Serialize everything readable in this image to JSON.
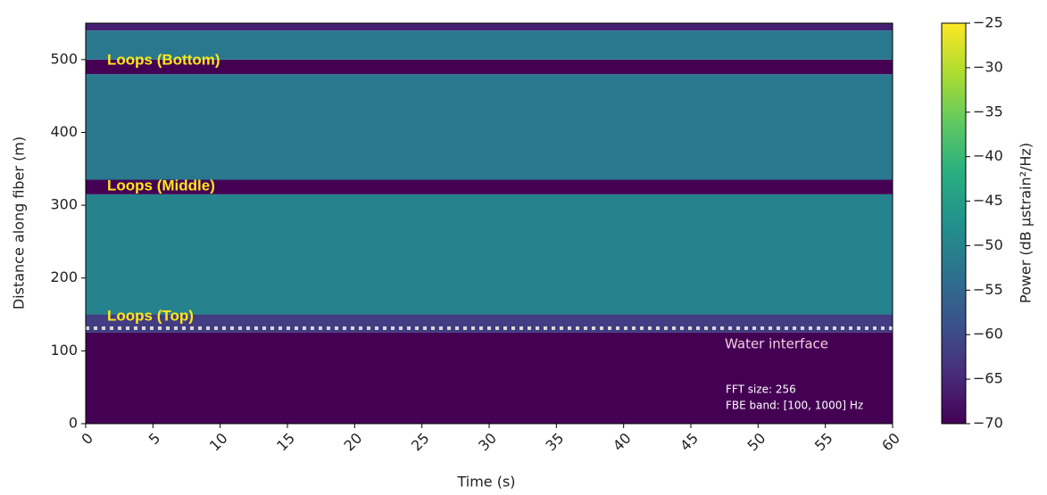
{
  "chart_data": {
    "type": "heatmap",
    "x_label": "Time (s)",
    "y_label": "Distance along fiber (m)",
    "xlim": [
      0,
      60
    ],
    "xticks": [
      0,
      5,
      10,
      15,
      20,
      25,
      30,
      35,
      40,
      45,
      50,
      55,
      60
    ],
    "ylim": [
      0,
      550
    ],
    "yticks": [
      0,
      100,
      200,
      300,
      400,
      500
    ],
    "rows": [
      {
        "start": 0,
        "end": 125,
        "value": -70
      },
      {
        "start": 125,
        "end": 150,
        "value": -62
      },
      {
        "start": 150,
        "end": 315,
        "value": -50
      },
      {
        "start": 315,
        "end": 335,
        "value": -70
      },
      {
        "start": 335,
        "end": 480,
        "value": -52
      },
      {
        "start": 480,
        "end": 500,
        "value": -70
      },
      {
        "start": 500,
        "end": 540,
        "value": -52
      },
      {
        "start": 540,
        "end": 550,
        "value": -66
      }
    ],
    "colormap": [
      "#440154",
      "#472d7b",
      "#3b528b",
      "#2c728e",
      "#21918c",
      "#28ae80",
      "#5ec962",
      "#addc30",
      "#fde725"
    ],
    "colorbar_label": "Power (dB µstrain²/Hz)",
    "clim": [
      -70,
      -25
    ],
    "cticks": [
      {
        "value": -25,
        "label": "−25"
      },
      {
        "value": -30,
        "label": "−30"
      },
      {
        "value": -35,
        "label": "−35"
      },
      {
        "value": -40,
        "label": "−40"
      },
      {
        "value": -45,
        "label": "−45"
      },
      {
        "value": -50,
        "label": "−50"
      },
      {
        "value": -55,
        "label": "−55"
      },
      {
        "value": -60,
        "label": "−60"
      },
      {
        "value": -65,
        "label": "−65"
      },
      {
        "value": -70,
        "label": "−70"
      }
    ],
    "water_interface": 131,
    "annotations": [
      "Loops (Bottom)",
      "Loops (Middle)",
      "Loops (Top)"
    ],
    "water_label": "Water interface",
    "notes": [
      "FFT size: 256",
      "FBE band: [100, 1000] Hz"
    ]
  }
}
